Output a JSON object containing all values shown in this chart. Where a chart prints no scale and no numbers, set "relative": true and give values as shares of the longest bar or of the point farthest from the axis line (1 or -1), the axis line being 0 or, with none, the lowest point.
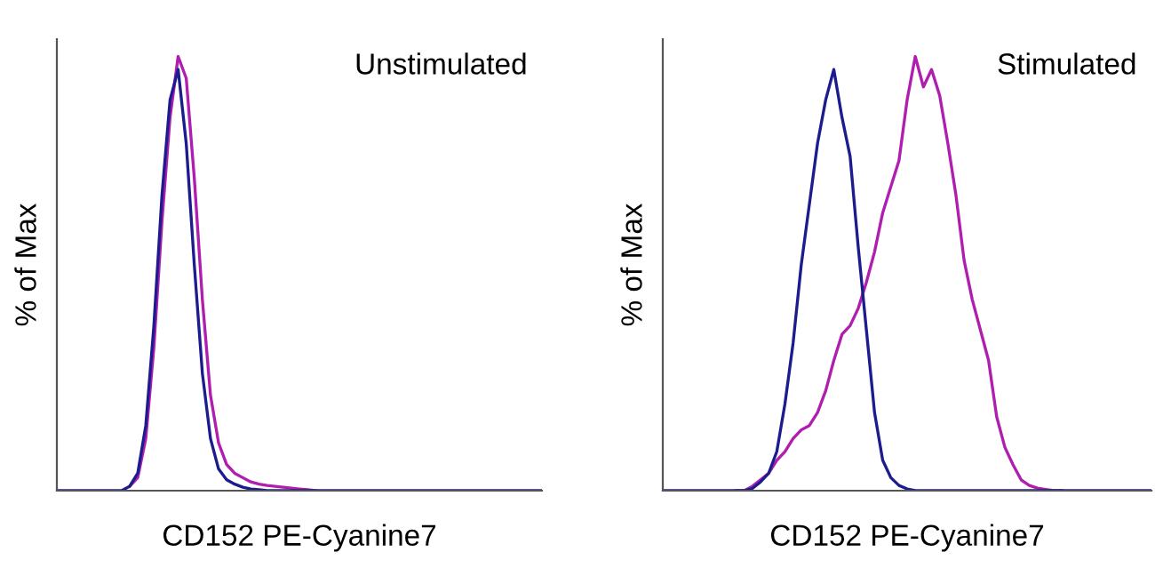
{
  "chart_data": [
    {
      "type": "line",
      "relative": true,
      "xlabel": "CD152 PE-Cyanine7",
      "ylabel": "% of Max",
      "annotations": [
        "Unstimulated"
      ],
      "grid": false,
      "marker": "none",
      "line_style": "solid",
      "categories": [
        null,
        null,
        null,
        null,
        null,
        null,
        null,
        null,
        null,
        null,
        null,
        null,
        null,
        null,
        null,
        null,
        null,
        null,
        null,
        null,
        null,
        null,
        null,
        null,
        null,
        null,
        null,
        null,
        null,
        null,
        null,
        null,
        null,
        null,
        null,
        null,
        null,
        null,
        null,
        null,
        null,
        null,
        null,
        null,
        null,
        null,
        null,
        null,
        null,
        null,
        null,
        null,
        null,
        null,
        null,
        null,
        null,
        null,
        null,
        null,
        null
      ],
      "series": [
        {
          "color": "#b01eb0",
          "values": [
            null,
            null,
            null,
            null,
            null,
            null,
            null,
            null,
            null,
            0.01,
            0.03,
            0.12,
            0.33,
            0.62,
            0.86,
            1.0,
            0.95,
            0.72,
            0.44,
            0.22,
            0.11,
            0.06,
            0.04,
            0.03,
            0.02,
            0.015,
            0.012,
            0.01,
            0.008,
            0.006,
            0.004,
            0.002,
            0,
            null,
            null,
            null,
            null,
            null,
            null,
            null,
            null,
            null,
            null,
            null,
            null,
            null,
            null,
            null,
            null,
            null,
            null,
            null,
            null,
            null,
            null,
            null,
            null,
            null,
            null,
            null,
            null
          ]
        },
        {
          "color": "#1c1c8e",
          "values": [
            0,
            0,
            0,
            0,
            0,
            0,
            0,
            0,
            0,
            0.01,
            0.04,
            0.15,
            0.38,
            0.68,
            0.9,
            0.97,
            0.8,
            0.52,
            0.27,
            0.12,
            0.05,
            0.025,
            0.015,
            0.008,
            0.004,
            0.002,
            0,
            0,
            0,
            0,
            0,
            0,
            0,
            0,
            0,
            0,
            0,
            0,
            0,
            0,
            0,
            0,
            0,
            0,
            0,
            0,
            0,
            0,
            0,
            0,
            0,
            0,
            0,
            0,
            0,
            0,
            0,
            0,
            0,
            0,
            0
          ]
        }
      ]
    },
    {
      "type": "line",
      "relative": true,
      "xlabel": "CD152 PE-Cyanine7",
      "ylabel": "% of Max",
      "annotations": [
        "Stimulated"
      ],
      "grid": false,
      "marker": "none",
      "line_style": "solid",
      "categories": [
        null,
        null,
        null,
        null,
        null,
        null,
        null,
        null,
        null,
        null,
        null,
        null,
        null,
        null,
        null,
        null,
        null,
        null,
        null,
        null,
        null,
        null,
        null,
        null,
        null,
        null,
        null,
        null,
        null,
        null,
        null,
        null,
        null,
        null,
        null,
        null,
        null,
        null,
        null,
        null,
        null,
        null,
        null,
        null,
        null,
        null,
        null,
        null,
        null,
        null,
        null,
        null,
        null,
        null,
        null,
        null,
        null,
        null,
        null,
        null,
        null
      ],
      "series": [
        {
          "color": "#b01eb0",
          "values": [
            null,
            null,
            null,
            null,
            null,
            null,
            null,
            null,
            null,
            0,
            0,
            0.01,
            0.025,
            0.04,
            0.07,
            0.09,
            0.12,
            0.14,
            0.15,
            0.18,
            0.23,
            0.3,
            0.36,
            0.38,
            0.42,
            0.48,
            0.55,
            0.64,
            0.7,
            0.76,
            0.9,
            1.0,
            0.93,
            0.97,
            0.91,
            0.8,
            0.68,
            0.53,
            0.44,
            0.37,
            0.3,
            0.17,
            0.1,
            0.06,
            0.025,
            0.012,
            0.006,
            0.003,
            0,
            0,
            null,
            null,
            null,
            null,
            null,
            null,
            null,
            null,
            null,
            null,
            null
          ]
        },
        {
          "color": "#1c1c8e",
          "values": [
            0,
            0,
            0,
            0,
            0,
            0,
            0,
            0,
            0,
            0,
            0,
            0.005,
            0.02,
            0.04,
            0.09,
            0.2,
            0.34,
            0.52,
            0.66,
            0.8,
            0.9,
            0.97,
            0.86,
            0.77,
            0.56,
            0.37,
            0.18,
            0.07,
            0.03,
            0.012,
            0.004,
            0,
            0,
            0,
            0,
            0,
            0,
            0,
            0,
            0,
            0,
            0,
            0,
            0,
            0,
            0,
            0,
            0,
            0,
            0,
            0,
            0,
            0,
            0,
            0,
            0,
            0,
            0,
            0,
            0,
            0
          ]
        }
      ]
    }
  ]
}
